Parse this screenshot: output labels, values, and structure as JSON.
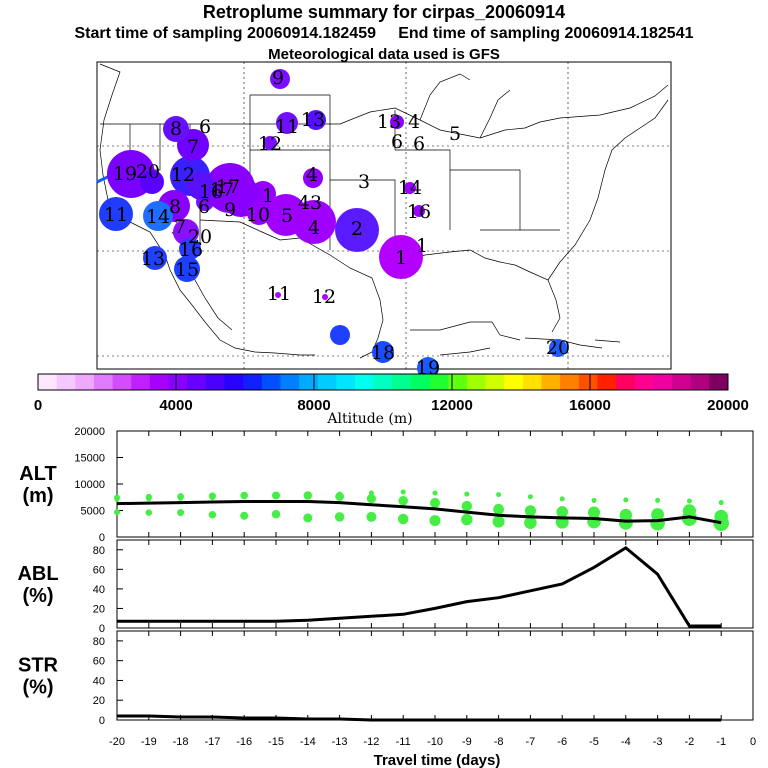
{
  "header": {
    "title": "Retroplume summary for cirpas_20060914",
    "start": "Start time of sampling 20060914.182459",
    "end": "End time of sampling 20060914.182541",
    "met": "Meteorological data used is GFS"
  },
  "chart_data": [
    {
      "type": "scatter",
      "name": "map",
      "title": "Retroplume positions",
      "points": [
        {
          "label": "1",
          "color": "#b400ff",
          "size": "large"
        },
        {
          "label": "2",
          "color": "#5a1cff",
          "size": "large"
        },
        {
          "label": "3",
          "color": "#9a00ff",
          "size": "none"
        },
        {
          "label": "4",
          "color": "#a000ff",
          "size": "large"
        },
        {
          "label": "5",
          "color": "#a000ff",
          "size": "large"
        },
        {
          "label": "6",
          "color": "#7a10ff",
          "size": "medium"
        },
        {
          "label": "7",
          "color": "#7000ff",
          "size": "medium"
        },
        {
          "label": "8",
          "color": "#6610ff",
          "size": "medium"
        },
        {
          "label": "9",
          "color": "#8a00ff",
          "size": "large"
        },
        {
          "label": "10",
          "color": "#9600ff",
          "size": "medium"
        },
        {
          "label": "11",
          "color": "#1f3cff",
          "size": "medium"
        },
        {
          "label": "12",
          "color": "#b000ff",
          "size": "small"
        },
        {
          "label": "13",
          "color": "#2040ff",
          "size": "medium"
        },
        {
          "label": "14",
          "color": "#1e6eff",
          "size": "medium"
        },
        {
          "label": "15",
          "color": "#1c40ff",
          "size": "medium"
        },
        {
          "label": "16",
          "color": "#2a3cff",
          "size": "medium"
        },
        {
          "label": "17",
          "color": "#5a10ff",
          "size": "medium"
        },
        {
          "label": "18",
          "color": "#1a4cff",
          "size": "medium"
        },
        {
          "label": "19",
          "color": "#1a5aff",
          "size": "medium"
        },
        {
          "label": "20",
          "color": "#1c5cff",
          "size": "medium"
        }
      ],
      "map_labels": [
        "9",
        "8",
        "6",
        "7",
        "11",
        "13",
        "13",
        "4",
        "5",
        "6",
        "6",
        "12",
        "19",
        "20",
        "11",
        "14",
        "8",
        "6",
        "9",
        "16",
        "17",
        "10",
        "5",
        "4",
        "43",
        "4",
        "3",
        "2",
        "1",
        "1",
        "14",
        "16",
        "13",
        "15",
        "16",
        "20",
        "7",
        "12",
        "11",
        "12",
        "17",
        "18",
        "19",
        "20",
        "1"
      ]
    },
    {
      "type": "colorbar",
      "name": "altitude-colorbar",
      "label": "Altitude (m)",
      "range": [
        0,
        20000
      ],
      "ticks": [
        "0",
        "4000",
        "8000",
        "12000",
        "16000",
        "20000"
      ],
      "colors": [
        "#ffe6ff",
        "#f7c8ff",
        "#efa8ff",
        "#e07aff",
        "#d34dff",
        "#c020ff",
        "#a800ff",
        "#8800ff",
        "#6a00ff",
        "#4a00ff",
        "#2a00ff",
        "#1020ff",
        "#0050ff",
        "#0080ff",
        "#00aaff",
        "#00ccff",
        "#00e6ff",
        "#00ffee",
        "#00ffc0",
        "#00ff90",
        "#00ff60",
        "#20ff30",
        "#60ff10",
        "#a0ff00",
        "#d0ff00",
        "#ffff00",
        "#ffe000",
        "#ffb000",
        "#ff8000",
        "#ff5000",
        "#ff2000",
        "#ff0060",
        "#ff0090",
        "#f000a0",
        "#d00090",
        "#b00080",
        "#800060"
      ]
    },
    {
      "type": "line",
      "name": "alt-panel",
      "ylabel": "ALT (m)",
      "ylabel_lines": [
        "ALT",
        "(m)"
      ],
      "ylim": [
        0,
        20000
      ],
      "yticks": [
        "0",
        "5000",
        "10000",
        "15000",
        "20000"
      ],
      "x": [
        -20,
        -19,
        -18,
        -17,
        -16,
        -15,
        -14,
        -13,
        -12,
        -11,
        -10,
        -9,
        -8,
        -7,
        -6,
        -5,
        -4,
        -3,
        -2,
        -1
      ],
      "values": [
        6300,
        6400,
        6500,
        6600,
        6700,
        6700,
        6700,
        6500,
        6100,
        5700,
        5300,
        4700,
        4100,
        3800,
        3600,
        3500,
        3000,
        3100,
        3800,
        2700
      ],
      "scatter_hi": [
        7100,
        7200,
        7300,
        7400,
        7600,
        7700,
        7700,
        8100,
        8300,
        8500,
        8300,
        8100,
        8000,
        7600,
        7200,
        6900,
        7000,
        6900,
        6800,
        6500
      ],
      "scatter_lo": [
        4700,
        4600,
        4600,
        4200,
        4000,
        4300,
        3600,
        3800,
        3800,
        3400,
        3100,
        3300,
        2900,
        2700,
        2800,
        2900,
        2700,
        2600,
        3500,
        2600
      ]
    },
    {
      "type": "line",
      "name": "abl-panel",
      "ylabel": "ABL (%)",
      "ylabel_lines": [
        "ABL",
        "(%)"
      ],
      "ylim": [
        0,
        90
      ],
      "yticks": [
        "0",
        "20",
        "40",
        "60",
        "80"
      ],
      "x": [
        -20,
        -19,
        -18,
        -17,
        -16,
        -15,
        -14,
        -13,
        -12,
        -11,
        -10,
        -9,
        -8,
        -7,
        -6,
        -5,
        -4,
        -3,
        -2,
        -1
      ],
      "values": [
        7,
        7,
        7,
        7,
        7,
        7,
        8,
        10,
        12,
        14,
        20,
        27,
        31,
        38,
        45,
        62,
        82,
        55,
        2,
        2
      ]
    },
    {
      "type": "line",
      "name": "str-panel",
      "ylabel": "STR (%)",
      "ylabel_lines": [
        "STR",
        "(%)"
      ],
      "ylim": [
        0,
        90
      ],
      "yticks": [
        "0",
        "20",
        "40",
        "60",
        "80"
      ],
      "x": [
        -20,
        -19,
        -18,
        -17,
        -16,
        -15,
        -14,
        -13,
        -12,
        -11,
        -10,
        -9,
        -8,
        -7,
        -6,
        -5,
        -4,
        -3,
        -2,
        -1
      ],
      "values": [
        4,
        4,
        3,
        3,
        2,
        2,
        1,
        1,
        0,
        0,
        0,
        0,
        0,
        0,
        0,
        0,
        0,
        0,
        0,
        0
      ]
    },
    {
      "type": "axis",
      "name": "x-axis",
      "xlabel": "Travel time (days)",
      "xticks": [
        "-20",
        "-19",
        "-18",
        "-17",
        "-16",
        "-15",
        "-14",
        "-13",
        "-12",
        "-11",
        "-10",
        "-9",
        "-8",
        "-7",
        "-6",
        "-5",
        "-4",
        "-3",
        "-2",
        "-1",
        "0"
      ]
    }
  ]
}
